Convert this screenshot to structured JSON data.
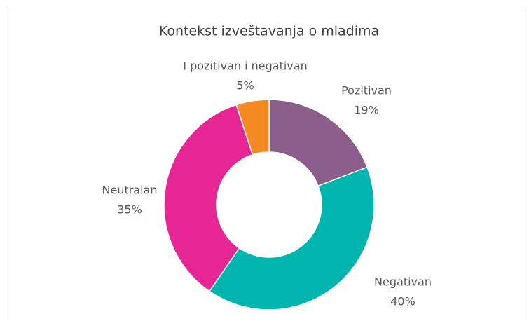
{
  "chart_data": {
    "type": "donut",
    "title": "Kontekst izveštavanja o mladima",
    "categories": [
      "Pozitivan",
      "Negativan",
      "Neutralan",
      "I pozitivan i negativan"
    ],
    "values": [
      19,
      40,
      35,
      5
    ],
    "value_labels": [
      "19%",
      "40%",
      "35%",
      "5%"
    ],
    "colors": [
      "#8B5E8B",
      "#00B5AE",
      "#E72696",
      "#F58A23"
    ]
  }
}
